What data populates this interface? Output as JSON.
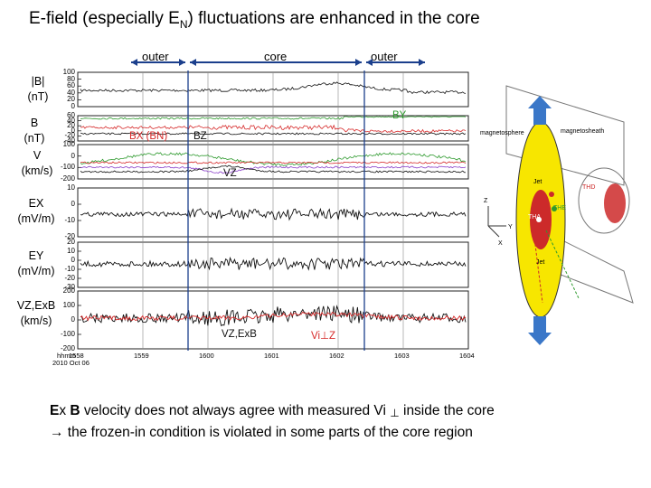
{
  "slide": {
    "title_main": "E-field (especially E",
    "title_sub": "N",
    "title_end": ") fluctuations are enhanced in the core"
  },
  "regions": {
    "left": "outer",
    "middle": "core",
    "right": "outer"
  },
  "panels": [
    {
      "label_lines": [
        "|B|",
        "(nT)"
      ],
      "ticks": [
        "100",
        "80",
        "60",
        "40",
        "20",
        "0"
      ]
    },
    {
      "label_lines": [
        "B",
        "(nT)"
      ],
      "ticks": [
        "60",
        "40",
        "20",
        "0",
        "-20",
        "-40"
      ]
    },
    {
      "label_lines": [
        "V",
        "(km/s)"
      ],
      "ticks": [
        "100",
        "0",
        "-100",
        "-200"
      ]
    },
    {
      "label_lines": [
        "EX",
        "(mV/m)"
      ],
      "ticks": [
        "10",
        "0",
        "-10",
        "-20"
      ]
    },
    {
      "label_lines": [
        "EY",
        "(mV/m)"
      ],
      "ticks": [
        "20",
        "10",
        "0",
        "-10",
        "-20",
        "-30"
      ]
    },
    {
      "label_lines": [
        "VZ,ExB",
        "(km/s)"
      ],
      "ticks": [
        "200",
        "100",
        "0",
        "-100",
        "-200"
      ]
    }
  ],
  "annotations": {
    "bx_bn": "BX (BN)",
    "bz": "BZ",
    "by": "BY",
    "vz": "VZ",
    "vz_exb": "VZ,ExB",
    "vi_perp_z": "Vi⊥Z"
  },
  "time_axis": {
    "row_label": "hhmm",
    "date": "2010 Oct 06",
    "ticks": [
      "1558",
      "1559",
      "1600",
      "1601",
      "1602",
      "1603",
      "1604"
    ]
  },
  "diagram": {
    "labels": [
      "magnetosphere",
      "magnetosheath",
      "Jet",
      "THD",
      "THE",
      "THA",
      "Jet",
      "Z",
      "Y",
      "X"
    ]
  },
  "caption": {
    "line1_b1": "E",
    "line1_x": "x ",
    "line1_b2": "B",
    "line1_rest": " velocity does not always agree with measured Vi",
    "line1_perp": "⊥",
    "line1_end": " inside the core",
    "line2": "→ the frozen-in condition is violated in some parts of the core region"
  },
  "colors": {
    "black_trace": "#111111",
    "red_trace": "#d62a2a",
    "green_trace": "#2e9a2e",
    "purple_trace": "#8a3fc9",
    "region_arrow": "#1b3f8c",
    "core_fill": "#f7e600",
    "jet_arrow": "#3a77c8"
  }
}
